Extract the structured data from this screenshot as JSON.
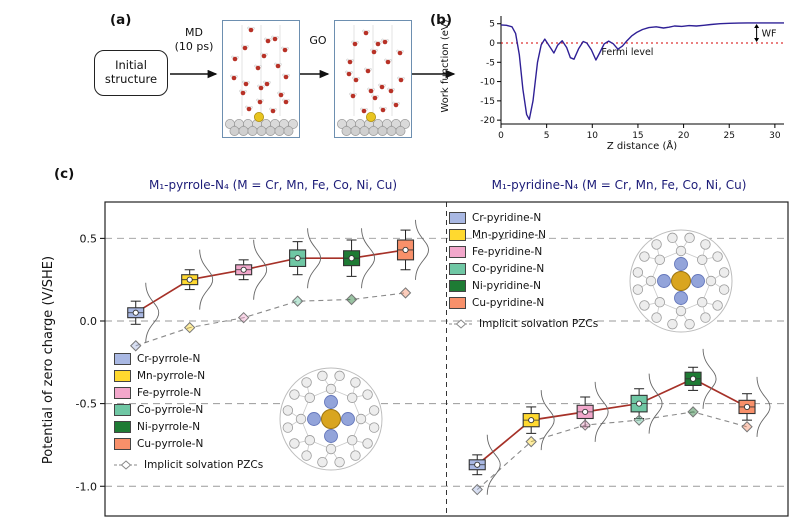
{
  "figure": {
    "panel_a_label": "(a)",
    "panel_b_label": "(b)",
    "panel_c_label": "(c)"
  },
  "panel_a": {
    "initial_structure": "Initial\nstructure",
    "md_label": "MD\n(10 ps)",
    "go_label": "GO"
  },
  "chart_data": [
    {
      "id": "work_function_profile",
      "type": "line",
      "title": "",
      "xlabel": "Z distance (Å)",
      "ylabel": "Work function (eV)",
      "xlim": [
        0,
        31
      ],
      "ylim": [
        -21,
        7
      ],
      "xticks": [
        0,
        5,
        10,
        15,
        20,
        25,
        30
      ],
      "yticks": [
        5,
        0,
        -5,
        -10,
        -15,
        -20
      ],
      "line_color": "#2f2096",
      "fermi_level": 0,
      "fermi_label": "Fermi level",
      "fermi_color": "#d40000",
      "wf_label": "WF",
      "vacuum_level": 5.2,
      "series": [
        {
          "name": "work function",
          "x": [
            0,
            0.6,
            1.2,
            1.6,
            2.0,
            2.4,
            2.8,
            3.1,
            3.5,
            4.0,
            4.4,
            4.8,
            5.3,
            5.8,
            6.2,
            6.7,
            7.2,
            7.6,
            8.0,
            8.5,
            9.0,
            9.4,
            9.9,
            10.4,
            10.8,
            11.3,
            11.8,
            12.3,
            12.8,
            13.3,
            13.8,
            14.3,
            14.9,
            15.5,
            16.2,
            17.0,
            17.8,
            18.4,
            19.0,
            19.8,
            20.6,
            21.4,
            22.2,
            23.0,
            24.0,
            25.0,
            26.0,
            27.0,
            28.0,
            29.0,
            30.0,
            31.0
          ],
          "y": [
            4.7,
            4.6,
            4.2,
            2.5,
            -3.0,
            -12.0,
            -18.5,
            -19.8,
            -15.0,
            -5.0,
            -0.5,
            1.0,
            -0.8,
            -2.6,
            -0.6,
            0.6,
            -1.2,
            -3.8,
            -4.2,
            -1.5,
            0.4,
            0.0,
            -1.8,
            -4.4,
            -2.6,
            -0.2,
            0.5,
            -0.2,
            -1.6,
            -0.8,
            0.6,
            1.8,
            2.8,
            3.5,
            4.0,
            4.2,
            3.9,
            4.1,
            4.4,
            4.3,
            4.5,
            4.4,
            4.6,
            4.8,
            5.0,
            5.1,
            5.15,
            5.2,
            5.2,
            5.2,
            5.2,
            5.2
          ]
        }
      ]
    },
    {
      "id": "potential_of_zero_charge",
      "type": "box-line",
      "ylabel": "Potential of zero charge (V/SHE)",
      "ylim": [
        -1.18,
        0.72
      ],
      "yticks": [
        "0.5",
        "0.0",
        "-0.5",
        "-1.0"
      ],
      "ytick_values": [
        0.5,
        0.0,
        -0.5,
        -1.0
      ],
      "grid": true,
      "red_line_color": "#a63128",
      "implicit_line_color": "#8a8a8a",
      "metals": [
        "Cr",
        "Mn",
        "Fe",
        "Co",
        "Ni",
        "Cu"
      ],
      "metal_colors": {
        "Cr": "#a9b8e3",
        "Mn": "#ffd92f",
        "Fe": "#f2a7cb",
        "Co": "#6fc7a4",
        "Ni": "#1e7b34",
        "Cu": "#f8906a"
      },
      "groups": [
        {
          "title": "M₁-pyrrole-N₄ (M = Cr, Mn, Fe, Co, Ni, Cu)",
          "legend": [
            "Cr-pyrrole-N",
            "Mn-pyrrole-N",
            "Fe-pyrrole-N",
            "Co-pyrrole-N",
            "Ni-pyrrole-N",
            "Cu-pyrrole-N"
          ],
          "implicit_legend": "Implicit solvation PZCs",
          "pzc_values": [
            0.05,
            0.25,
            0.31,
            0.38,
            0.38,
            0.43
          ],
          "box_half_height": [
            0.03,
            0.03,
            0.03,
            0.05,
            0.045,
            0.06
          ],
          "whisker": [
            0.07,
            0.06,
            0.06,
            0.1,
            0.11,
            0.12
          ],
          "implicit_values": [
            -0.15,
            -0.04,
            0.02,
            0.12,
            0.13,
            0.17
          ]
        },
        {
          "title": "M₁-pyridine-N₄ (M = Cr, Mn, Fe, Co, Ni, Cu)",
          "legend": [
            "Cr-pyridine-N",
            "Mn-pyridine-N",
            "Fe-pyridine-N",
            "Co-pyridine-N",
            "Ni-pyridine-N",
            "Cu-pyridine-N"
          ],
          "implicit_legend": "Implicit solvation PZCs",
          "pzc_values": [
            -0.87,
            -0.6,
            -0.55,
            -0.5,
            -0.35,
            -0.52
          ],
          "box_half_height": [
            0.03,
            0.04,
            0.04,
            0.05,
            0.04,
            0.04
          ],
          "whisker": [
            0.06,
            0.08,
            0.09,
            0.09,
            0.07,
            0.08
          ],
          "implicit_values": [
            -1.02,
            -0.73,
            -0.63,
            -0.6,
            -0.55,
            -0.64
          ]
        }
      ]
    }
  ]
}
